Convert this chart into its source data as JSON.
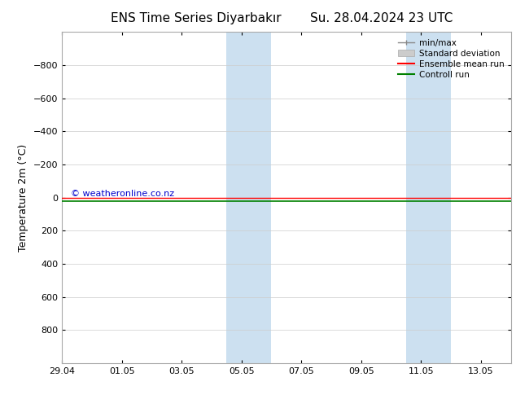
{
  "title_left": "ENS Time Series Diyarbakır",
  "title_right": "Su. 28.04.2024 23 UTC",
  "ylabel": "Temperature 2m (°C)",
  "ylim": [
    -1000,
    1000
  ],
  "yticks": [
    -800,
    -600,
    -400,
    -200,
    0,
    200,
    400,
    600,
    800
  ],
  "x_tick_labels": [
    "29.04",
    "01.05",
    "03.05",
    "05.05",
    "07.05",
    "09.05",
    "11.05",
    "13.05"
  ],
  "x_tick_positions": [
    0,
    2,
    4,
    6,
    8,
    10,
    12,
    14
  ],
  "xlim": [
    0,
    15
  ],
  "shaded_regions": [
    {
      "x_start": 5.5,
      "x_end": 7.0
    },
    {
      "x_start": 11.5,
      "x_end": 13.0
    }
  ],
  "ensemble_mean_y": 0.0,
  "control_run_y": 20.0,
  "watermark": "© weatheronline.co.nz",
  "watermark_color": "#0000cc",
  "bg_color": "#ffffff",
  "plot_bg_color": "#ffffff",
  "shaded_color": "#cce0f0",
  "ensemble_mean_color": "#ff0000",
  "control_run_color": "#008000",
  "grid_color": "#cccccc",
  "legend_items": [
    {
      "label": "min/max",
      "color": "#888888",
      "style": "minmax"
    },
    {
      "label": "Standard deviation",
      "color": "#cccccc",
      "style": "fill"
    },
    {
      "label": "Ensemble mean run",
      "color": "#ff0000",
      "style": "line"
    },
    {
      "label": "Controll run",
      "color": "#008000",
      "style": "line"
    }
  ],
  "title_fontsize": 11,
  "tick_fontsize": 8,
  "ylabel_fontsize": 9,
  "legend_fontsize": 7.5
}
